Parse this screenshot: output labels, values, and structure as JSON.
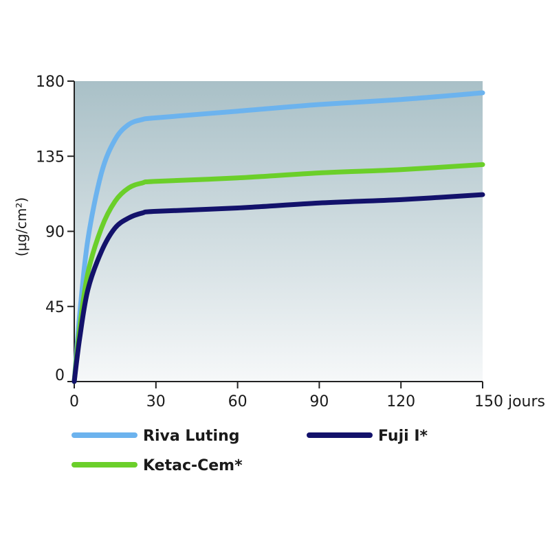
{
  "chart_data": {
    "type": "line",
    "ylabel": "(µg/cm²)",
    "x_ticks": [
      "0",
      "30",
      "60",
      "90",
      "120",
      "150 jours"
    ],
    "y_ticks": [
      "0",
      "45",
      "90",
      "135",
      "180"
    ],
    "xlim": [
      0,
      150
    ],
    "ylim": [
      0,
      180
    ],
    "grid": false,
    "legend_position": "bottom",
    "series": [
      {
        "name": "Riva Luting",
        "color": "#6cb3ee",
        "x": [
          0,
          2,
          5,
          10,
          15,
          20,
          25,
          30,
          60,
          90,
          120,
          150
        ],
        "y": [
          0,
          40,
          85,
          125,
          145,
          154,
          157,
          158,
          162,
          166,
          169,
          173
        ]
      },
      {
        "name": "Ketac-Cem*",
        "color": "#6bcf2a",
        "x": [
          0,
          2,
          5,
          10,
          15,
          20,
          25,
          30,
          60,
          90,
          120,
          150
        ],
        "y": [
          0,
          32,
          65,
          92,
          108,
          116,
          119,
          120,
          122,
          125,
          127,
          130
        ]
      },
      {
        "name": "Fuji I*",
        "color": "#13126b",
        "x": [
          0,
          2,
          5,
          10,
          15,
          20,
          25,
          30,
          60,
          90,
          120,
          150
        ],
        "y": [
          0,
          26,
          55,
          78,
          92,
          98,
          101,
          102,
          104,
          107,
          109,
          112
        ]
      }
    ]
  }
}
